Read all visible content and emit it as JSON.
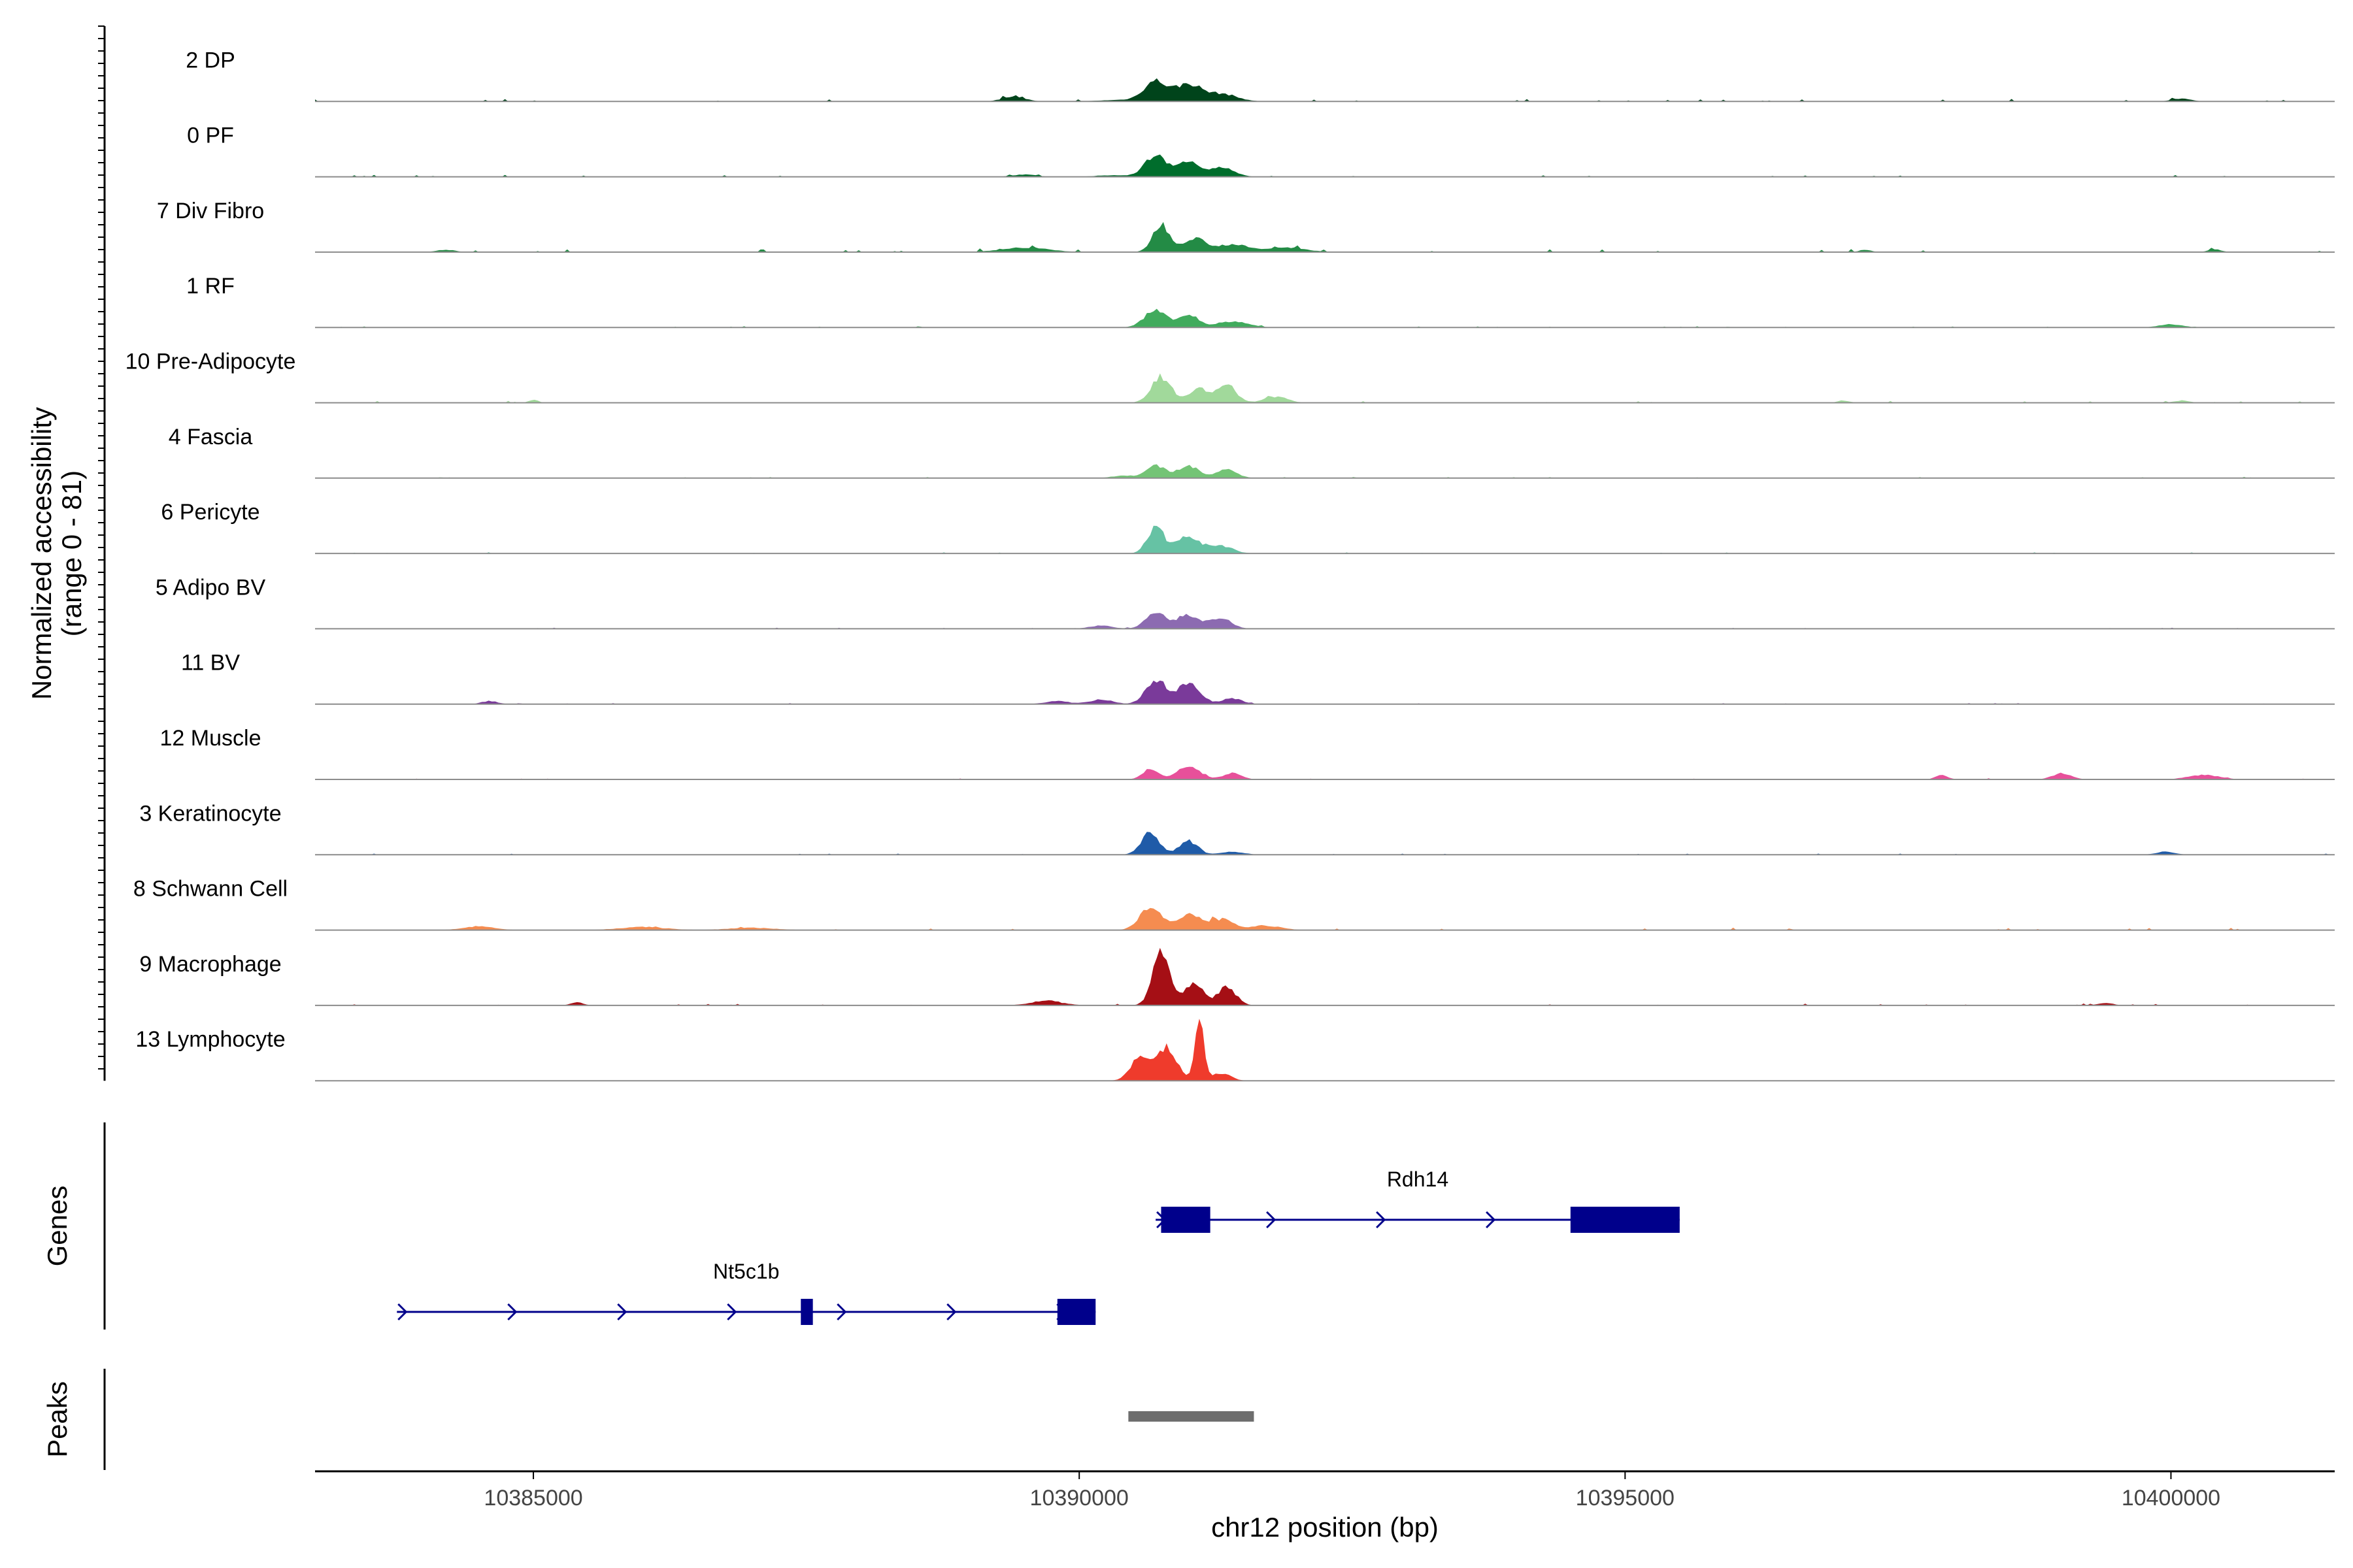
{
  "chart_data": {
    "type": "area",
    "chromosome": "chr12",
    "xlabel": "chr12 position (bp)",
    "xlim": [
      10383000,
      10401500
    ],
    "x_ticks": [
      10385000,
      10390000,
      10395000,
      10400000
    ],
    "x_tick_labels": [
      "10385000",
      "10390000",
      "10395000",
      "10400000"
    ],
    "ylabel": "Normalized accessibility",
    "ylabel_range": "(range 0 - 81)",
    "ylim": [
      0,
      81
    ],
    "grid": false,
    "series": [
      {
        "name": "2 DP",
        "color": "#00441b",
        "peaks": [
          [
            10389400,
            6,
            150
          ],
          [
            10390700,
            26,
            150
          ],
          [
            10391000,
            22,
            160
          ],
          [
            10391300,
            10,
            200
          ],
          [
            10390400,
            2,
            300
          ],
          [
            10400100,
            4,
            120
          ]
        ],
        "noise": 2
      },
      {
        "name": "0 PF",
        "color": "#006d2c",
        "peaks": [
          [
            10390700,
            28,
            140
          ],
          [
            10391000,
            22,
            130
          ],
          [
            10391300,
            12,
            160
          ],
          [
            10389500,
            3,
            150
          ],
          [
            10390300,
            2,
            200
          ]
        ],
        "noise": 1.5
      },
      {
        "name": "7 Div Fibro",
        "color": "#238b45",
        "peaks": [
          [
            10390750,
            36,
            110
          ],
          [
            10391050,
            18,
            150
          ],
          [
            10391400,
            10,
            200
          ],
          [
            10391900,
            6,
            250
          ],
          [
            10389500,
            6,
            300
          ],
          [
            10384200,
            3,
            120
          ],
          [
            10397200,
            3,
            80
          ],
          [
            10400400,
            4,
            80
          ]
        ],
        "noise": 2.5
      },
      {
        "name": "1 RF",
        "color": "#41ab5d",
        "peaks": [
          [
            10390700,
            24,
            140
          ],
          [
            10391000,
            16,
            130
          ],
          [
            10391400,
            8,
            200
          ],
          [
            10400000,
            4,
            150
          ]
        ],
        "noise": 1
      },
      {
        "name": "10 Pre-Adipocyte",
        "color": "#a1d99b",
        "peaks": [
          [
            10390750,
            34,
            130
          ],
          [
            10391100,
            18,
            130
          ],
          [
            10391350,
            24,
            120
          ],
          [
            10391800,
            8,
            150
          ],
          [
            10385000,
            4,
            60
          ],
          [
            10397000,
            3,
            80
          ],
          [
            10400100,
            3,
            100
          ]
        ],
        "noise": 1.5
      },
      {
        "name": "4 Fascia",
        "color": "#74c476",
        "peaks": [
          [
            10390700,
            16,
            130
          ],
          [
            10391000,
            16,
            130
          ],
          [
            10391350,
            12,
            130
          ],
          [
            10390400,
            3,
            150
          ]
        ],
        "noise": 1
      },
      {
        "name": "6 Pericyte",
        "color": "#66c2a4",
        "peaks": [
          [
            10390700,
            34,
            110
          ],
          [
            10391000,
            22,
            150
          ],
          [
            10391300,
            10,
            150
          ]
        ],
        "noise": 1
      },
      {
        "name": "5 Adipo BV",
        "color": "#8c6bb1",
        "peaks": [
          [
            10390700,
            20,
            130
          ],
          [
            10391000,
            18,
            150
          ],
          [
            10391300,
            14,
            130
          ],
          [
            10390200,
            4,
            150
          ]
        ],
        "noise": 1
      },
      {
        "name": "11 BV",
        "color": "#7a3a9a",
        "peaks": [
          [
            10390700,
            32,
            130
          ],
          [
            10391000,
            26,
            150
          ],
          [
            10391400,
            8,
            120
          ],
          [
            10390200,
            6,
            150
          ],
          [
            10384600,
            4,
            100
          ],
          [
            10389800,
            4,
            150
          ]
        ],
        "noise": 1
      },
      {
        "name": "12 Muscle",
        "color": "#e7509a",
        "peaks": [
          [
            10390650,
            14,
            100
          ],
          [
            10391000,
            16,
            150
          ],
          [
            10391400,
            8,
            120
          ],
          [
            10397900,
            6,
            80
          ],
          [
            10399000,
            8,
            120
          ],
          [
            10400300,
            6,
            200
          ]
        ],
        "noise": 1
      },
      {
        "name": "3 Keratinocyte",
        "color": "#1f5ba8",
        "peaks": [
          [
            10390650,
            28,
            120
          ],
          [
            10391000,
            18,
            120
          ],
          [
            10391400,
            4,
            150
          ],
          [
            10399950,
            4,
            120
          ]
        ],
        "noise": 1
      },
      {
        "name": "8 Schwann Cell",
        "color": "#f58c50",
        "peaks": [
          [
            10390650,
            30,
            140
          ],
          [
            10391000,
            20,
            150
          ],
          [
            10391300,
            14,
            150
          ],
          [
            10391700,
            6,
            200
          ],
          [
            10384500,
            5,
            200
          ],
          [
            10386000,
            4,
            300
          ],
          [
            10387000,
            3,
            300
          ]
        ],
        "noise": 2
      },
      {
        "name": "9 Macrophage",
        "color": "#a50f15",
        "peaks": [
          [
            10390750,
            70,
            110
          ],
          [
            10391050,
            32,
            110
          ],
          [
            10391350,
            24,
            120
          ],
          [
            10389700,
            6,
            200
          ],
          [
            10385400,
            4,
            80
          ],
          [
            10399400,
            3,
            100
          ]
        ],
        "noise": 1.5
      },
      {
        "name": "13 Lymphocyte",
        "color": "#ef3b2c",
        "peaks": [
          [
            10390550,
            30,
            120
          ],
          [
            10390800,
            44,
            130
          ],
          [
            10391100,
            81,
            60
          ],
          [
            10391300,
            10,
            120
          ]
        ],
        "noise": 0
      }
    ],
    "genes": [
      {
        "name": "Nt5c1b",
        "strand": "+",
        "start": 10383750,
        "end": 10390150,
        "exons": [
          [
            10387450,
            10387560
          ],
          [
            10389800,
            10390150
          ]
        ]
      },
      {
        "name": "Rdh14",
        "strand": "+",
        "start": 10390700,
        "end": 10395500,
        "exons": [
          [
            10390750,
            10391200
          ],
          [
            10394500,
            10395500
          ]
        ]
      }
    ],
    "genes_label": "Genes",
    "peaks_label": "Peaks",
    "peak_regions": [
      [
        10390450,
        10391600
      ]
    ]
  }
}
